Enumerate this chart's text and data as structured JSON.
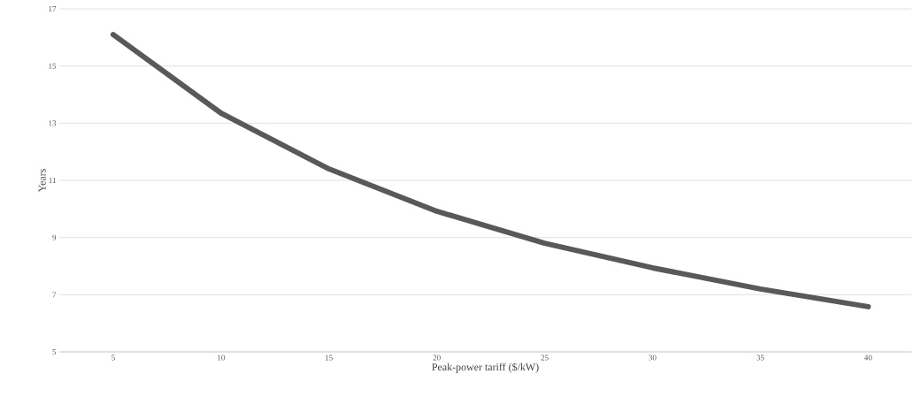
{
  "chart_data": {
    "type": "line",
    "xlabel": "Peak-power tariff ($/kW)",
    "ylabel": "Years",
    "categories": [
      "5",
      "10",
      "15",
      "20",
      "25",
      "30",
      "35",
      "40"
    ],
    "values": [
      16.1,
      13.35,
      11.4,
      9.92,
      8.8,
      7.94,
      7.2,
      6.58
    ],
    "color": "#595959",
    "ylim": [
      5,
      17
    ],
    "yticks": [
      5,
      7,
      9,
      11,
      13,
      15,
      17
    ],
    "grid": "y",
    "marker": "none",
    "line_style": "solid"
  }
}
